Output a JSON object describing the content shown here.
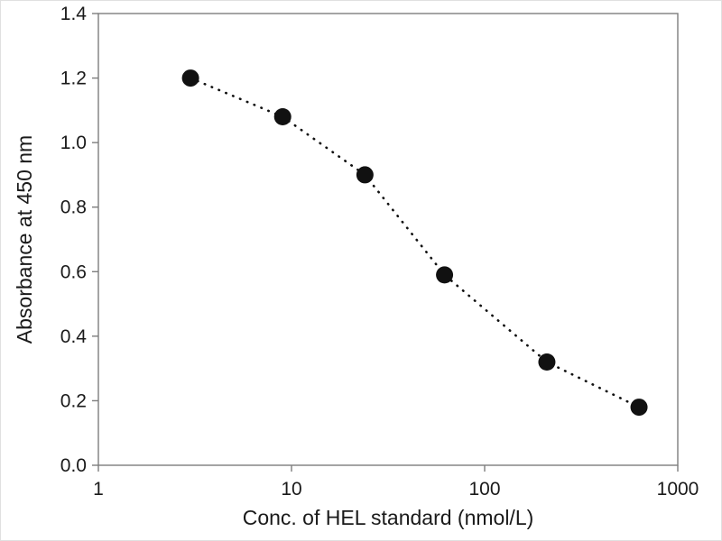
{
  "chart_data": {
    "type": "scatter",
    "title": "",
    "xlabel": "Conc. of HEL standard (nmol/L)",
    "ylabel": "Absorbance at 450 nm",
    "x_scale": "log",
    "y_scale": "linear",
    "xlim": [
      1,
      1000
    ],
    "ylim": [
      0,
      1.4
    ],
    "grid": false,
    "legend": "none",
    "line_style": "dotted",
    "marker": "filled-circle",
    "series_color": "#111111",
    "axis_color": "#7d7d7d",
    "text_color": "#1a1a1a",
    "x_ticks": [
      {
        "value": 1,
        "label": "1"
      },
      {
        "value": 10,
        "label": "10"
      },
      {
        "value": 100,
        "label": "100"
      },
      {
        "value": 1000,
        "label": "1000"
      }
    ],
    "y_ticks": [
      {
        "value": 0.0,
        "label": "0.0"
      },
      {
        "value": 0.2,
        "label": "0.2"
      },
      {
        "value": 0.4,
        "label": "0.4"
      },
      {
        "value": 0.6,
        "label": "0.6"
      },
      {
        "value": 0.8,
        "label": "0.8"
      },
      {
        "value": 1.0,
        "label": "1.0"
      },
      {
        "value": 1.2,
        "label": "1.2"
      },
      {
        "value": 1.4,
        "label": "1.4"
      }
    ],
    "points": [
      {
        "x": 3,
        "y": 1.2
      },
      {
        "x": 9,
        "y": 1.08
      },
      {
        "x": 24,
        "y": 0.9
      },
      {
        "x": 62,
        "y": 0.59
      },
      {
        "x": 210,
        "y": 0.32
      },
      {
        "x": 630,
        "y": 0.18
      }
    ]
  }
}
